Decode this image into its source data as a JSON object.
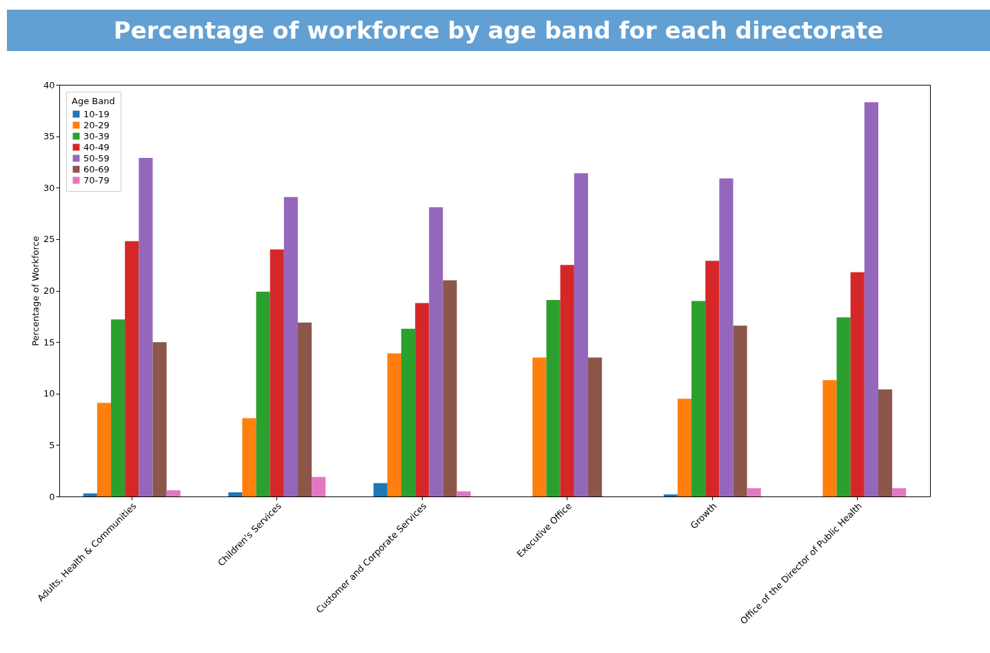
{
  "chart_data": {
    "type": "bar",
    "title": "Percentage of workforce by age band for each directorate",
    "ylabel": "Percentage of Workforce",
    "legend_title": "Age Band",
    "categories": [
      "Adults, Health & Communities",
      "Children's Services",
      "Customer and Corporate Services",
      "Executive Office",
      "Growth",
      "Office of the Director of Public Health"
    ],
    "series": [
      {
        "name": "10-19",
        "color": "#1f77b4",
        "values": [
          0.3,
          0.4,
          1.3,
          null,
          0.2,
          null
        ]
      },
      {
        "name": "20-29",
        "color": "#ff7f0e",
        "values": [
          9.1,
          7.6,
          13.9,
          13.5,
          9.5,
          11.3
        ]
      },
      {
        "name": "30-39",
        "color": "#2ca02c",
        "values": [
          17.2,
          19.9,
          16.3,
          19.1,
          19.0,
          17.4
        ]
      },
      {
        "name": "40-49",
        "color": "#d62728",
        "values": [
          24.8,
          24.0,
          18.8,
          22.5,
          22.9,
          21.8
        ]
      },
      {
        "name": "50-59",
        "color": "#9467bd",
        "values": [
          32.9,
          29.1,
          28.1,
          31.4,
          30.9,
          38.3
        ]
      },
      {
        "name": "60-69",
        "color": "#8c564b",
        "values": [
          15.0,
          16.9,
          21.0,
          13.5,
          16.6,
          10.4
        ]
      },
      {
        "name": "70-79",
        "color": "#e377c2",
        "values": [
          0.6,
          1.9,
          0.5,
          null,
          0.8,
          0.8
        ]
      }
    ],
    "ylim": [
      0,
      40
    ],
    "yticks": [
      0,
      5,
      10,
      15,
      20,
      25,
      30,
      35,
      40
    ],
    "grid": false,
    "legend": "top left"
  }
}
